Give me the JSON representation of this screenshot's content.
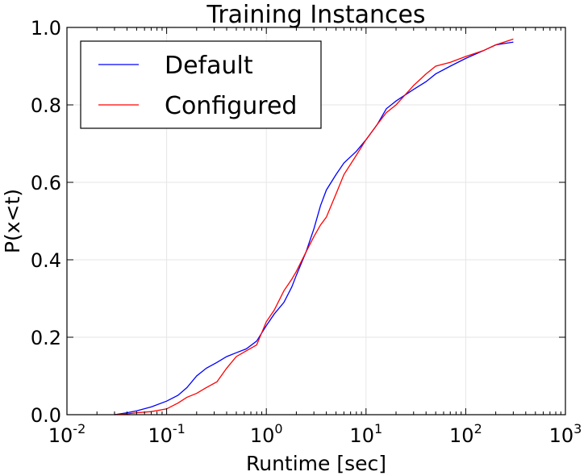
{
  "chart_data": {
    "type": "line",
    "title": "Training Instances",
    "xlabel": "Runtime [sec]",
    "ylabel": "P(x<t)",
    "xscale": "log",
    "xlim": [
      0.01,
      1000
    ],
    "ylim": [
      0.0,
      1.0
    ],
    "grid": true,
    "legend_position": "top-left",
    "x_ticks": [
      {
        "value": 0.01,
        "base": "10",
        "exp": "-2"
      },
      {
        "value": 0.1,
        "base": "10",
        "exp": "-1"
      },
      {
        "value": 1,
        "base": "10",
        "exp": "0"
      },
      {
        "value": 10,
        "base": "10",
        "exp": "1"
      },
      {
        "value": 100,
        "base": "10",
        "exp": "2"
      },
      {
        "value": 1000,
        "base": "10",
        "exp": "3"
      }
    ],
    "y_ticks": [
      {
        "value": 0.0,
        "label": "0.0"
      },
      {
        "value": 0.2,
        "label": "0.2"
      },
      {
        "value": 0.4,
        "label": "0.4"
      },
      {
        "value": 0.6,
        "label": "0.6"
      },
      {
        "value": 0.8,
        "label": "0.8"
      },
      {
        "value": 1.0,
        "label": "1.0"
      }
    ],
    "series": [
      {
        "name": "Default",
        "color": "#0000ff",
        "points": [
          [
            0.03,
            0.0
          ],
          [
            0.04,
            0.005
          ],
          [
            0.05,
            0.01
          ],
          [
            0.07,
            0.02
          ],
          [
            0.1,
            0.035
          ],
          [
            0.13,
            0.05
          ],
          [
            0.16,
            0.07
          ],
          [
            0.2,
            0.1
          ],
          [
            0.25,
            0.12
          ],
          [
            0.32,
            0.135
          ],
          [
            0.4,
            0.15
          ],
          [
            0.5,
            0.16
          ],
          [
            0.63,
            0.17
          ],
          [
            0.8,
            0.19
          ],
          [
            1.0,
            0.23
          ],
          [
            1.2,
            0.26
          ],
          [
            1.5,
            0.29
          ],
          [
            1.8,
            0.33
          ],
          [
            2.0,
            0.36
          ],
          [
            2.5,
            0.42
          ],
          [
            3.0,
            0.48
          ],
          [
            3.5,
            0.54
          ],
          [
            4.0,
            0.58
          ],
          [
            5.0,
            0.62
          ],
          [
            6.0,
            0.65
          ],
          [
            8.0,
            0.68
          ],
          [
            10,
            0.71
          ],
          [
            13,
            0.75
          ],
          [
            16,
            0.79
          ],
          [
            20,
            0.81
          ],
          [
            30,
            0.84
          ],
          [
            40,
            0.86
          ],
          [
            50,
            0.88
          ],
          [
            70,
            0.9
          ],
          [
            100,
            0.92
          ],
          [
            150,
            0.94
          ],
          [
            200,
            0.955
          ],
          [
            300,
            0.962
          ]
        ]
      },
      {
        "name": "Configured",
        "color": "#ff0000",
        "points": [
          [
            0.03,
            0.0
          ],
          [
            0.04,
            0.002
          ],
          [
            0.05,
            0.005
          ],
          [
            0.07,
            0.008
          ],
          [
            0.1,
            0.015
          ],
          [
            0.13,
            0.03
          ],
          [
            0.16,
            0.045
          ],
          [
            0.2,
            0.055
          ],
          [
            0.25,
            0.07
          ],
          [
            0.32,
            0.085
          ],
          [
            0.4,
            0.12
          ],
          [
            0.5,
            0.15
          ],
          [
            0.63,
            0.165
          ],
          [
            0.8,
            0.18
          ],
          [
            1.0,
            0.24
          ],
          [
            1.2,
            0.27
          ],
          [
            1.5,
            0.32
          ],
          [
            1.8,
            0.35
          ],
          [
            2.0,
            0.37
          ],
          [
            2.5,
            0.42
          ],
          [
            3.0,
            0.46
          ],
          [
            3.5,
            0.49
          ],
          [
            4.0,
            0.51
          ],
          [
            5.0,
            0.57
          ],
          [
            6.0,
            0.62
          ],
          [
            8.0,
            0.67
          ],
          [
            10,
            0.71
          ],
          [
            13,
            0.75
          ],
          [
            16,
            0.78
          ],
          [
            20,
            0.8
          ],
          [
            30,
            0.85
          ],
          [
            40,
            0.88
          ],
          [
            50,
            0.9
          ],
          [
            70,
            0.91
          ],
          [
            100,
            0.925
          ],
          [
            150,
            0.94
          ],
          [
            200,
            0.955
          ],
          [
            300,
            0.97
          ]
        ]
      }
    ]
  }
}
